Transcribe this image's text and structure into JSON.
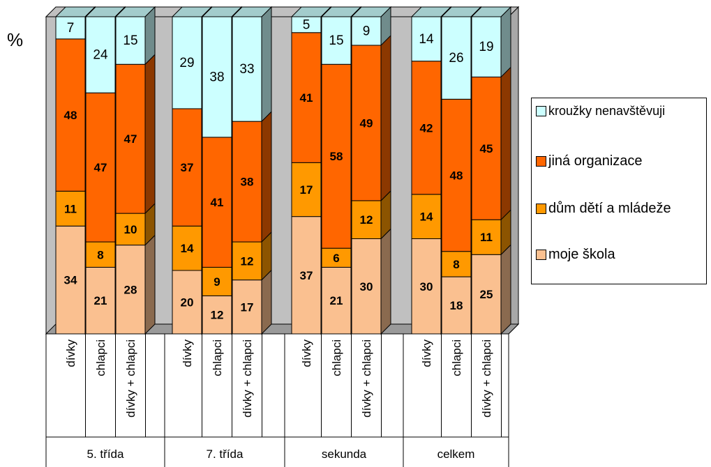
{
  "chart_data": {
    "type": "bar",
    "stacked": true,
    "ylabel": "%",
    "groups": [
      "5. třída",
      "7. třída",
      "sekunda",
      "celkem"
    ],
    "categories": [
      "dívky",
      "chlapci",
      "dívky + chlapci"
    ],
    "series": [
      {
        "name": "moje škola",
        "color": "#fac090",
        "values": [
          [
            34,
            21,
            28
          ],
          [
            20,
            12,
            17
          ],
          [
            37,
            21,
            30
          ],
          [
            30,
            18,
            25
          ]
        ]
      },
      {
        "name": "dům dětí a mládeže",
        "color": "#ff9900",
        "values": [
          [
            11,
            8,
            10
          ],
          [
            14,
            9,
            12
          ],
          [
            17,
            6,
            12
          ],
          [
            14,
            8,
            11
          ]
        ]
      },
      {
        "name": "jiná organizace",
        "color": "#ff6600",
        "values": [
          [
            48,
            47,
            47
          ],
          [
            37,
            41,
            38
          ],
          [
            41,
            58,
            49
          ],
          [
            42,
            48,
            45
          ]
        ]
      },
      {
        "name": "kroužky nenavštěvuji",
        "color": "#ccffff",
        "values": [
          [
            7,
            24,
            15
          ],
          [
            29,
            38,
            33
          ],
          [
            5,
            15,
            9
          ],
          [
            14,
            26,
            19
          ]
        ]
      }
    ],
    "legend_order": [
      "kroužky nenavštěvuji",
      "jiná organizace",
      "dům dětí a mládeže",
      "moje škola"
    ],
    "legend_position": "right",
    "wall_color": "#c0c0c0"
  }
}
